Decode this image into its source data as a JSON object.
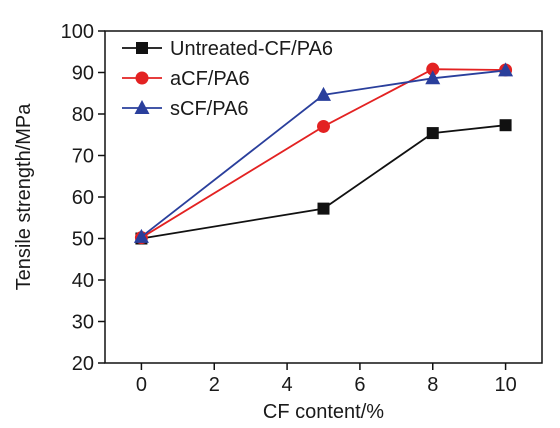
{
  "chart_data": {
    "type": "line",
    "xlabel": "CF content/%",
    "ylabel": "Tensile strength/MPa",
    "xlim": [
      -1,
      11
    ],
    "ylim": [
      20,
      100
    ],
    "x_ticks": [
      0,
      2,
      4,
      6,
      8,
      10
    ],
    "y_ticks": [
      20,
      30,
      40,
      50,
      60,
      70,
      80,
      90,
      100
    ],
    "legend_position": "top-left",
    "grid": false,
    "x": [
      0,
      5,
      8,
      10
    ],
    "series": [
      {
        "name": "Untreated-CF/PA6",
        "values": [
          50,
          57.2,
          75.4,
          77.3
        ],
        "color": "#111111",
        "marker": "square"
      },
      {
        "name": "aCF/PA6",
        "values": [
          50.2,
          77,
          90.8,
          90.6
        ],
        "color": "#e32222",
        "marker": "circle"
      },
      {
        "name": "sCF/PA6",
        "values": [
          50.4,
          84.6,
          88.6,
          90.5
        ],
        "color": "#2a3f9c",
        "marker": "triangle"
      }
    ]
  }
}
